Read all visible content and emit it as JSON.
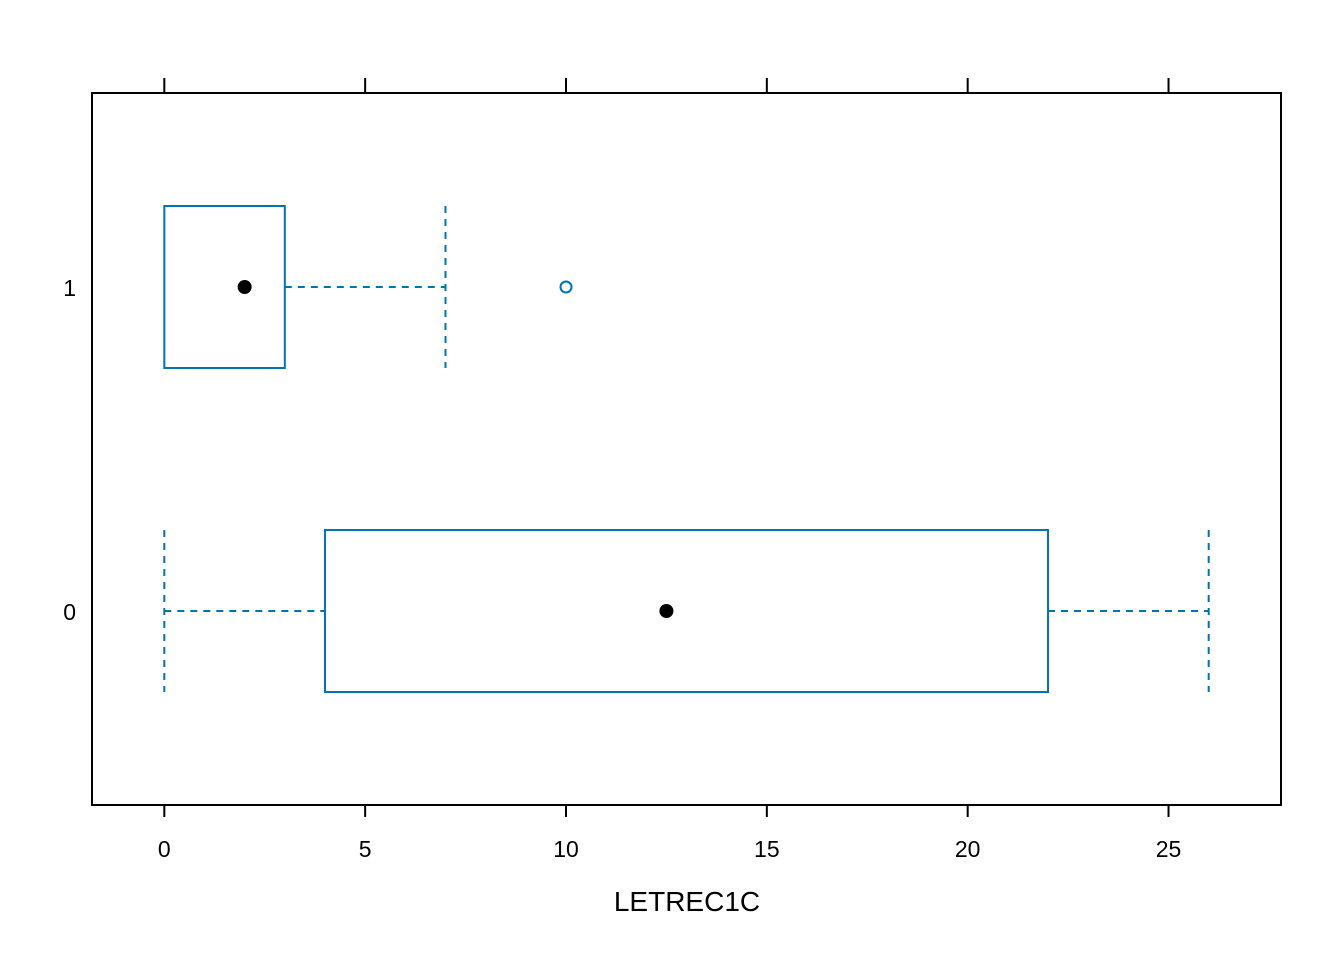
{
  "chart_data": {
    "type": "boxplot",
    "orientation": "horizontal",
    "xlabel": "LETREC1C",
    "xlim": [
      -1.8,
      27.8
    ],
    "x_ticks": [
      0,
      5,
      10,
      15,
      20,
      25
    ],
    "x_tick_labels": [
      "0",
      "5",
      "10",
      "15",
      "20",
      "25"
    ],
    "categories": [
      "0",
      "1"
    ],
    "boxes": [
      {
        "category": "1",
        "whisker_low": 0,
        "q1": 0,
        "median": 2,
        "q3": 3,
        "whisker_high": 7,
        "outliers": [
          10
        ]
      },
      {
        "category": "0",
        "whisker_low": 0,
        "q1": 4,
        "median": 12.5,
        "q3": 22,
        "whisker_high": 26,
        "outliers": []
      }
    ],
    "colors": {
      "box": "#0073b0",
      "median_dot": "#000000",
      "frame": "#000000"
    },
    "grid": false,
    "legend": "none"
  }
}
